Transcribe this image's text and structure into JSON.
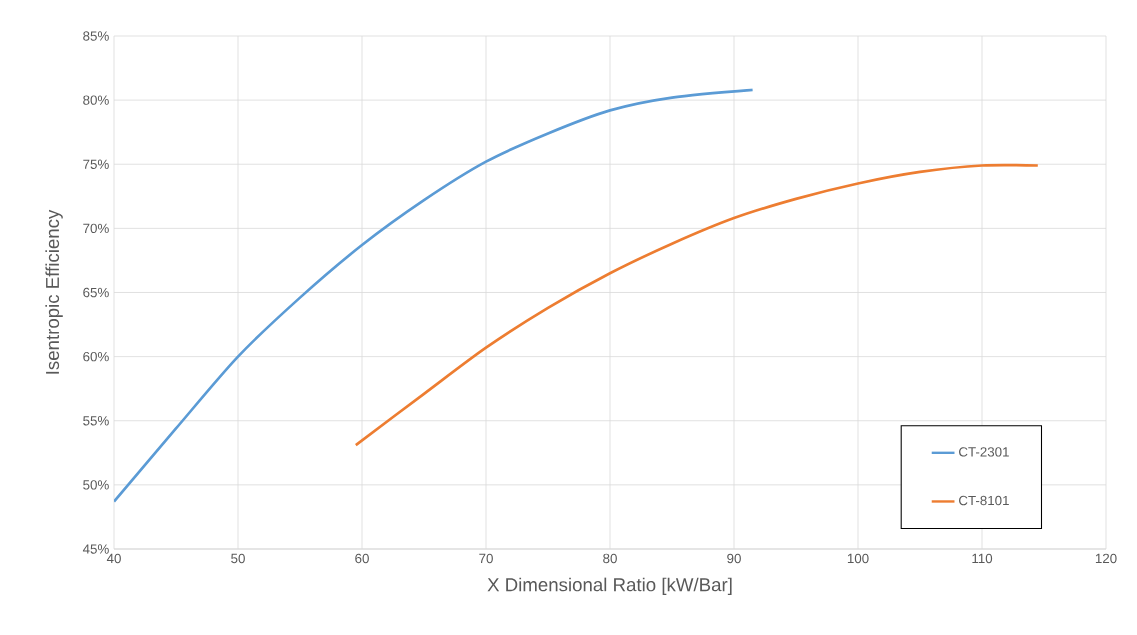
{
  "chart_data": {
    "type": "line",
    "xlabel": "X Dimensional Ratio [kW/Bar]",
    "ylabel": "Isentropic Efficiency",
    "xlim": [
      40,
      120
    ],
    "xticks": [
      40,
      50,
      60,
      70,
      80,
      90,
      100,
      110,
      120
    ],
    "ylim": [
      45,
      85
    ],
    "yticks": [
      {
        "value": 45,
        "label": "45%"
      },
      {
        "value": 50,
        "label": "50%"
      },
      {
        "value": 55,
        "label": "55%"
      },
      {
        "value": 60,
        "label": "60%"
      },
      {
        "value": 65,
        "label": "65%"
      },
      {
        "value": 70,
        "label": "70%"
      },
      {
        "value": 75,
        "label": "75%"
      },
      {
        "value": 80,
        "label": "80%"
      },
      {
        "value": 85,
        "label": "85%"
      }
    ],
    "grid": true,
    "legend": "bottom right",
    "marker": "none",
    "line_style": "solid",
    "series": [
      {
        "name": "CT-2301",
        "color": "#5b9bd5",
        "x": [
          40,
          45,
          50,
          55,
          60,
          65,
          70,
          75,
          80,
          85,
          91.5
        ],
        "values": [
          48.7,
          54.4,
          60.0,
          64.6,
          68.7,
          72.2,
          75.2,
          77.4,
          79.2,
          80.2,
          80.8
        ]
      },
      {
        "name": "CT-8101",
        "color": "#ed7d31",
        "x": [
          59.5,
          65,
          70,
          75,
          80,
          85,
          90,
          95,
          100,
          105,
          110,
          114.5
        ],
        "values": [
          53.1,
          57.1,
          60.7,
          63.8,
          66.5,
          68.8,
          70.8,
          72.3,
          73.5,
          74.4,
          74.9,
          74.9
        ]
      }
    ]
  }
}
